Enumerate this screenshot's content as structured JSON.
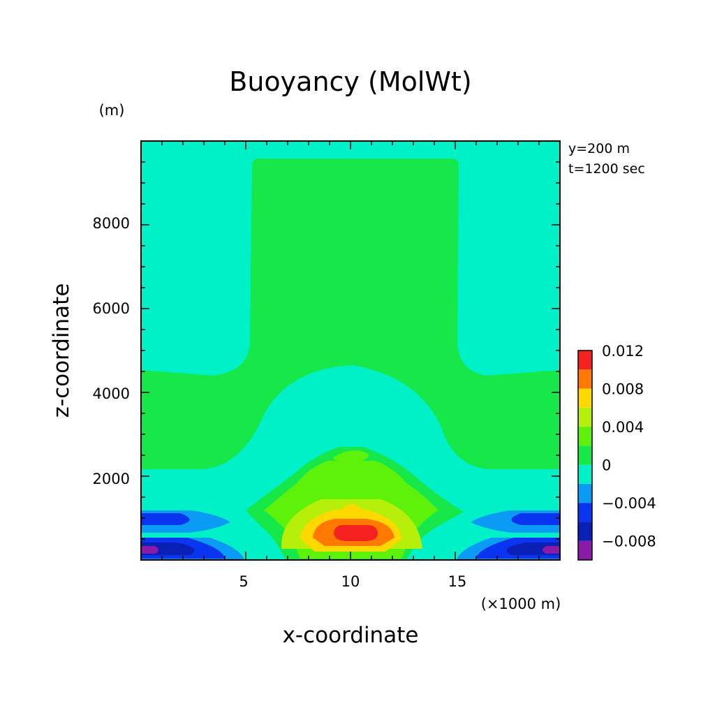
{
  "chart_data": {
    "type": "heatmap",
    "title": "Buoyancy (MolWt)",
    "xlabel": "x-coordinate",
    "ylabel": "z-coordinate",
    "x_unit": "(×1000 m)",
    "y_unit": "(m)",
    "xlim": [
      0,
      20
    ],
    "ylim": [
      0,
      10000
    ],
    "x_ticks": [
      5,
      10,
      15
    ],
    "x_tick_labels": [
      "5",
      "10",
      "15"
    ],
    "y_ticks": [
      2000,
      4000,
      6000,
      8000
    ],
    "y_tick_labels": [
      "2000",
      "4000",
      "6000",
      "8000"
    ],
    "annotation": [
      "y=200 m",
      "t=1200 sec"
    ],
    "colorbar": {
      "levels": [
        -0.01,
        -0.008,
        -0.006,
        -0.004,
        -0.002,
        0,
        0.002,
        0.004,
        0.006,
        0.008,
        0.01,
        0.012
      ],
      "colors": [
        "#8a1aa8",
        "#0a1fb4",
        "#0a35f0",
        "#0a9cf5",
        "#00f0c8",
        "#16e84a",
        "#5ef20a",
        "#b6f00a",
        "#ffd800",
        "#ff7800",
        "#f52020"
      ],
      "tick_values": [
        -0.008,
        -0.004,
        0,
        0.004,
        0.008,
        0.012
      ],
      "tick_labels": [
        "−0.008",
        "−0.004",
        "0",
        "0.004",
        "0.008",
        "0.012"
      ]
    }
  }
}
